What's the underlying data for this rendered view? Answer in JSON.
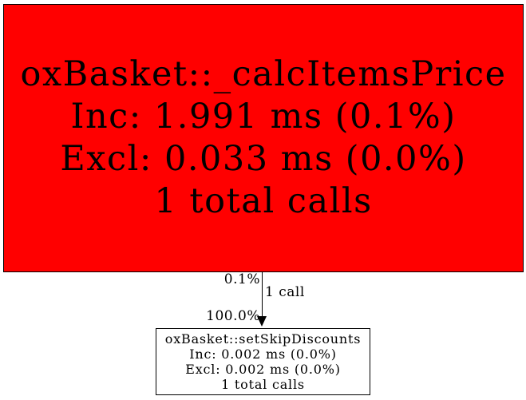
{
  "diagram": {
    "background_color": "#ffffff",
    "edge_color": "#000000",
    "nodes": {
      "caller": {
        "name": "oxBasket::_calcItemsPrice",
        "inclusive": "Inc: 1.991 ms (0.1%)",
        "exclusive": "Excl: 0.033 ms (0.0%)",
        "calls": "1 total calls",
        "fill_color": "#ff0000",
        "border_color": "#000000",
        "text_color": "#000000"
      },
      "callee": {
        "name": "oxBasket::setSkipDiscounts",
        "inclusive": "Inc: 0.002 ms (0.0%)",
        "exclusive": "Excl: 0.002 ms (0.0%)",
        "calls": "1 total calls",
        "fill_color": "#ffffff",
        "border_color": "#000000",
        "text_color": "#000000"
      }
    },
    "edge": {
      "inclusive_percent": "0.1%",
      "call_count": "1 call",
      "callee_percent": "100.0%"
    }
  }
}
